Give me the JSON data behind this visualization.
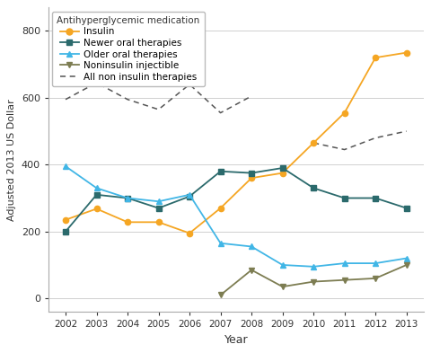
{
  "years": [
    2002,
    2003,
    2004,
    2005,
    2006,
    2007,
    2008,
    2009,
    2010,
    2011,
    2012,
    2013
  ],
  "insulin": [
    235,
    268,
    228,
    228,
    195,
    270,
    360,
    375,
    465,
    555,
    720,
    735
  ],
  "newer_oral": [
    200,
    310,
    300,
    270,
    305,
    380,
    375,
    390,
    330,
    300,
    300,
    270
  ],
  "older_oral": [
    395,
    330,
    300,
    290,
    310,
    165,
    155,
    100,
    95,
    105,
    105,
    120
  ],
  "noninsulin": [
    null,
    null,
    null,
    null,
    null,
    10,
    85,
    35,
    50,
    55,
    60,
    100
  ],
  "all_non_insulin": [
    595,
    645,
    595,
    565,
    640,
    555,
    605,
    null,
    465,
    445,
    480,
    500
  ],
  "insulin_color": "#f5a623",
  "newer_oral_color": "#2b6a6c",
  "older_oral_color": "#41b6e6",
  "noninsulin_color": "#7d7d52",
  "all_non_color": "#555555",
  "xlabel": "Year",
  "ylabel": "Adjusted 2013 US Dollar",
  "ylim": [
    -40,
    870
  ],
  "yticks": [
    0,
    200,
    400,
    600,
    800
  ],
  "legend_title": "Antihyperglycemic medication",
  "legend_labels": [
    "Insulin",
    "Newer oral therapies",
    "Older oral therapies",
    "Noninsulin injectible",
    "All non insulin therapies"
  ]
}
